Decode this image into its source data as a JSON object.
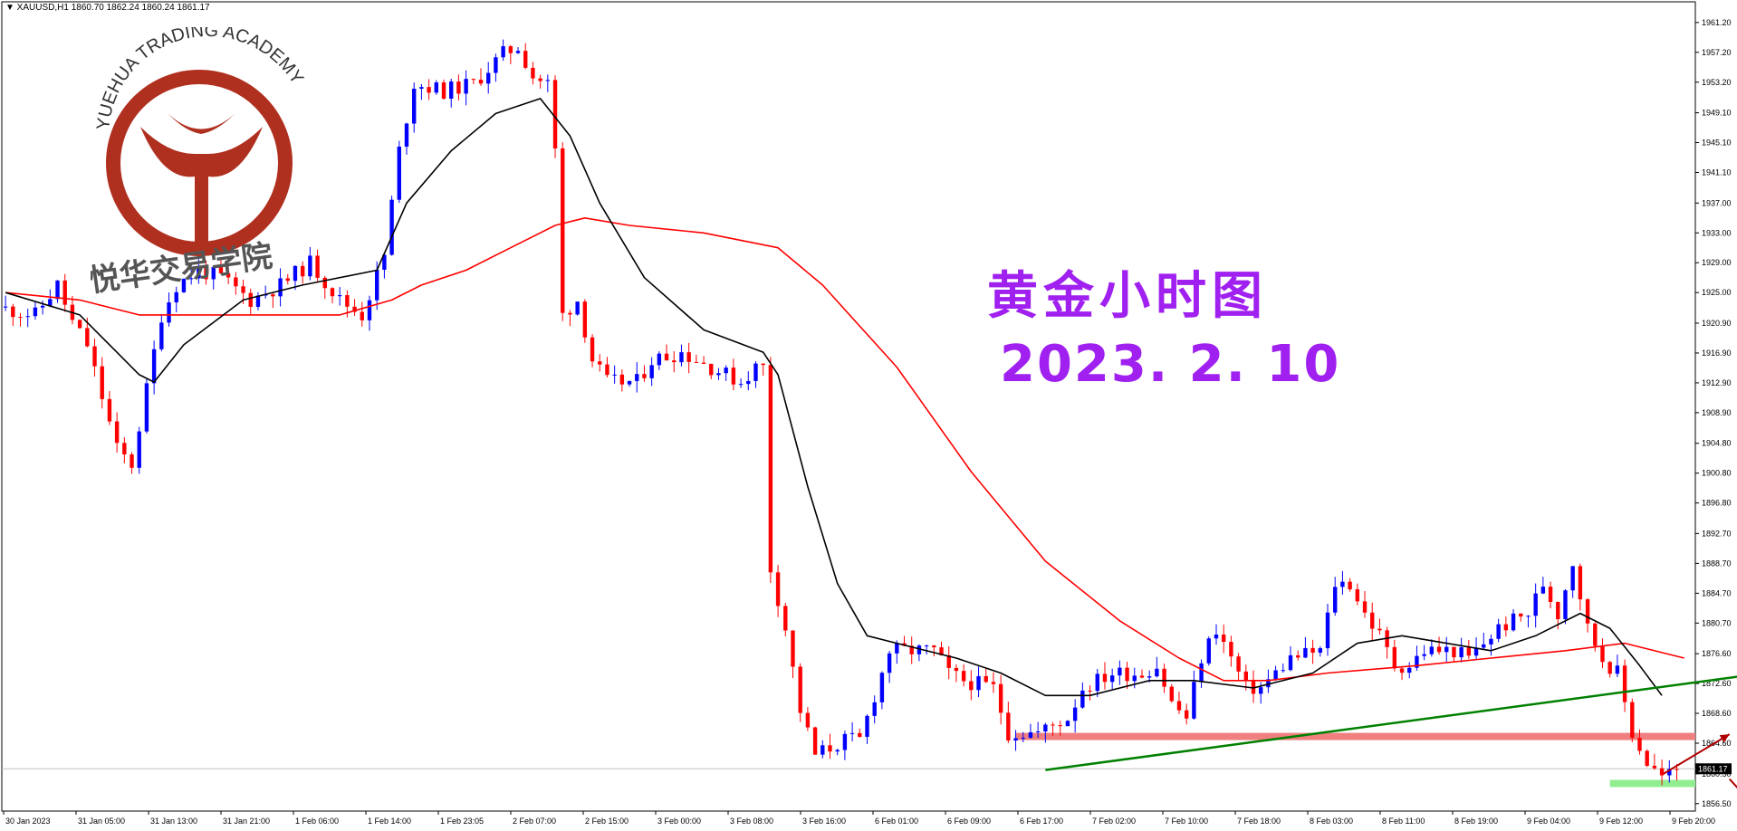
{
  "header": {
    "symbol_info": "▼ XAUUSD,H1  1860.70 1862.24 1860.24 1861.17"
  },
  "watermark": {
    "academy_en": "YUEHUA TRADING ACADEMY",
    "academy_cn": "悦华交易学院"
  },
  "annotation": {
    "title_cn": "黄金小时图",
    "date": "2023. 2. 10"
  },
  "colors": {
    "bull": "#0000ff",
    "bear": "#ff0000",
    "ma_fast": "#000000",
    "ma_slow": "#ff0000",
    "trendline": "#008000",
    "resistance": "#f08080",
    "support": "#90ee90",
    "arrow": "#b00000",
    "text_purple": "#a020f0"
  },
  "chart_data": {
    "type": "candlestick",
    "symbol": "XAUUSD",
    "timeframe": "H1",
    "ylim": [
      1855.5,
      1963.0
    ],
    "y_ticks": [
      "1961.20",
      "1957.20",
      "1953.20",
      "1949.10",
      "1945.10",
      "1941.10",
      "1937.00",
      "1933.00",
      "1929.00",
      "1925.00",
      "1920.90",
      "1916.90",
      "1912.90",
      "1908.90",
      "1904.80",
      "1900.80",
      "1896.80",
      "1892.70",
      "1888.70",
      "1884.70",
      "1880.70",
      "1876.60",
      "1872.60",
      "1868.60",
      "1864.60",
      "1860.50",
      "1856.50"
    ],
    "x_ticks": [
      "30 Jan 2023",
      "31 Jan 05:00",
      "31 Jan 13:00",
      "31 Jan 21:00",
      "1 Feb 06:00",
      "1 Feb 14:00",
      "1 Feb 23:05",
      "2 Feb 07:00",
      "2 Feb 15:00",
      "3 Feb 00:00",
      "3 Feb 08:00",
      "3 Feb 16:00",
      "6 Feb 01:00",
      "6 Feb 09:00",
      "6 Feb 17:00",
      "7 Feb 02:00",
      "7 Feb 10:00",
      "7 Feb 18:00",
      "8 Feb 03:00",
      "8 Feb 11:00",
      "8 Feb 19:00",
      "9 Feb 04:00",
      "9 Feb 12:00",
      "9 Feb 20:00"
    ],
    "current_price": "1861.17",
    "anchors": [
      [
        0,
        1923
      ],
      [
        5,
        1922
      ],
      [
        8,
        1926
      ],
      [
        10,
        1921
      ],
      [
        12,
        1918
      ],
      [
        14,
        1911
      ],
      [
        16,
        1904
      ],
      [
        18,
        1902
      ],
      [
        20,
        1912
      ],
      [
        22,
        1922
      ],
      [
        24,
        1926
      ],
      [
        27,
        1928
      ],
      [
        30,
        1927
      ],
      [
        34,
        1924
      ],
      [
        38,
        1926
      ],
      [
        42,
        1929
      ],
      [
        46,
        1924
      ],
      [
        49,
        1922
      ],
      [
        52,
        1930
      ],
      [
        54,
        1944
      ],
      [
        56,
        1953
      ],
      [
        60,
        1952
      ],
      [
        64,
        1953
      ],
      [
        68,
        1957
      ],
      [
        70,
        1958
      ],
      [
        72,
        1954
      ],
      [
        74,
        1953
      ],
      [
        75,
        1944
      ],
      [
        76,
        1922
      ],
      [
        78,
        1924
      ],
      [
        80,
        1916
      ],
      [
        82,
        1913
      ],
      [
        86,
        1913
      ],
      [
        88,
        1916
      ],
      [
        92,
        1917
      ],
      [
        96,
        1915
      ],
      [
        100,
        1913
      ],
      [
        102,
        1915
      ],
      [
        103,
        1915
      ],
      [
        104,
        1888
      ],
      [
        106,
        1880
      ],
      [
        108,
        1869
      ],
      [
        110,
        1863
      ],
      [
        112,
        1864
      ],
      [
        114,
        1865
      ],
      [
        116,
        1865
      ],
      [
        118,
        1871
      ],
      [
        120,
        1877
      ],
      [
        122,
        1877
      ],
      [
        126,
        1877
      ],
      [
        128,
        1874
      ],
      [
        130,
        1873
      ],
      [
        134,
        1872
      ],
      [
        136,
        1866
      ],
      [
        140,
        1866
      ],
      [
        142,
        1867
      ],
      [
        144,
        1868
      ],
      [
        146,
        1872
      ],
      [
        150,
        1874
      ],
      [
        154,
        1874
      ],
      [
        156,
        1875
      ],
      [
        158,
        1870
      ],
      [
        160,
        1868
      ],
      [
        162,
        1876
      ],
      [
        164,
        1880
      ],
      [
        166,
        1876
      ],
      [
        168,
        1872
      ],
      [
        170,
        1872
      ],
      [
        172,
        1874
      ],
      [
        174,
        1876
      ],
      [
        178,
        1877
      ],
      [
        180,
        1886
      ],
      [
        182,
        1886
      ],
      [
        184,
        1882
      ],
      [
        186,
        1879
      ],
      [
        188,
        1875
      ],
      [
        190,
        1875
      ],
      [
        192,
        1877
      ],
      [
        196,
        1877
      ],
      [
        198,
        1876
      ],
      [
        200,
        1878
      ],
      [
        202,
        1880
      ],
      [
        206,
        1882
      ],
      [
        208,
        1886
      ],
      [
        210,
        1882
      ],
      [
        212,
        1889
      ],
      [
        214,
        1880
      ],
      [
        216,
        1876
      ],
      [
        218,
        1874
      ],
      [
        220,
        1866
      ],
      [
        222,
        1862
      ],
      [
        224,
        1860
      ],
      [
        226,
        1861
      ]
    ],
    "ma_fast": [
      [
        0,
        1925
      ],
      [
        10,
        1922
      ],
      [
        18,
        1914
      ],
      [
        20,
        1913
      ],
      [
        24,
        1918
      ],
      [
        32,
        1924
      ],
      [
        40,
        1926
      ],
      [
        50,
        1928
      ],
      [
        54,
        1937
      ],
      [
        60,
        1944
      ],
      [
        66,
        1949
      ],
      [
        72,
        1951
      ],
      [
        76,
        1946
      ],
      [
        80,
        1937
      ],
      [
        86,
        1927
      ],
      [
        94,
        1920
      ],
      [
        102,
        1917
      ],
      [
        104,
        1914
      ],
      [
        108,
        1899
      ],
      [
        112,
        1886
      ],
      [
        116,
        1879
      ],
      [
        120,
        1878
      ],
      [
        128,
        1876
      ],
      [
        134,
        1874
      ],
      [
        140,
        1871
      ],
      [
        146,
        1871
      ],
      [
        154,
        1873
      ],
      [
        160,
        1873
      ],
      [
        168,
        1872
      ],
      [
        176,
        1874
      ],
      [
        182,
        1878
      ],
      [
        188,
        1879
      ],
      [
        194,
        1878
      ],
      [
        200,
        1877
      ],
      [
        206,
        1879
      ],
      [
        212,
        1882
      ],
      [
        216,
        1880
      ],
      [
        220,
        1875
      ],
      [
        223,
        1871
      ]
    ],
    "ma_slow": [
      [
        0,
        1925
      ],
      [
        10,
        1924
      ],
      [
        18,
        1922
      ],
      [
        30,
        1922
      ],
      [
        45,
        1922
      ],
      [
        52,
        1924
      ],
      [
        56,
        1926
      ],
      [
        62,
        1928
      ],
      [
        68,
        1931
      ],
      [
        74,
        1934
      ],
      [
        78,
        1935
      ],
      [
        84,
        1934
      ],
      [
        94,
        1933
      ],
      [
        104,
        1931
      ],
      [
        110,
        1926
      ],
      [
        120,
        1915
      ],
      [
        130,
        1901
      ],
      [
        140,
        1889
      ],
      [
        150,
        1881
      ],
      [
        158,
        1876
      ],
      [
        164,
        1873
      ],
      [
        170,
        1873
      ],
      [
        178,
        1874
      ],
      [
        190,
        1875
      ],
      [
        200,
        1876
      ],
      [
        210,
        1877
      ],
      [
        218,
        1878
      ],
      [
        226,
        1876
      ]
    ],
    "trendline": [
      [
        140,
        1861
      ],
      [
        248,
        1875.5
      ]
    ],
    "resistance_y": 1865.5,
    "support_y": 1859.2
  }
}
